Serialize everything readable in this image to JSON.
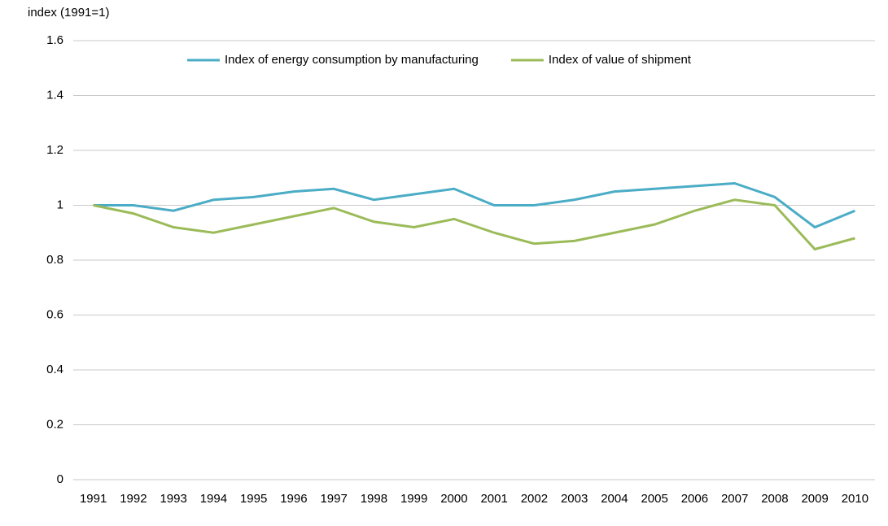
{
  "chart_data": {
    "type": "line",
    "title": "index (1991=1)",
    "categories": [
      "1991",
      "1992",
      "1993",
      "1994",
      "1995",
      "1996",
      "1997",
      "1998",
      "1999",
      "2000",
      "2001",
      "2002",
      "2003",
      "2004",
      "2005",
      "2006",
      "2007",
      "2008",
      "2009",
      "2010"
    ],
    "series": [
      {
        "name": "Index of energy consumption by manufacturing",
        "color": "#4bacc6",
        "values": [
          1,
          1.0,
          0.98,
          1.02,
          1.03,
          1.05,
          1.06,
          1.02,
          1.04,
          1.06,
          1.0,
          1.0,
          1.02,
          1.05,
          1.06,
          1.07,
          1.08,
          1.03,
          0.92,
          0.98
        ]
      },
      {
        "name": "Index of value of shipment",
        "color": "#9bbb59",
        "values": [
          1,
          0.97,
          0.92,
          0.9,
          0.93,
          0.96,
          0.99,
          0.94,
          0.92,
          0.95,
          0.9,
          0.86,
          0.87,
          0.9,
          0.93,
          0.98,
          1.02,
          1.0,
          0.84,
          0.88
        ]
      }
    ],
    "ylim": [
      0,
      1.6
    ],
    "yticks": [
      0,
      0.2,
      0.4,
      0.6,
      0.8,
      1,
      1.2,
      1.4,
      1.6
    ],
    "grid": true,
    "legend": "top"
  }
}
